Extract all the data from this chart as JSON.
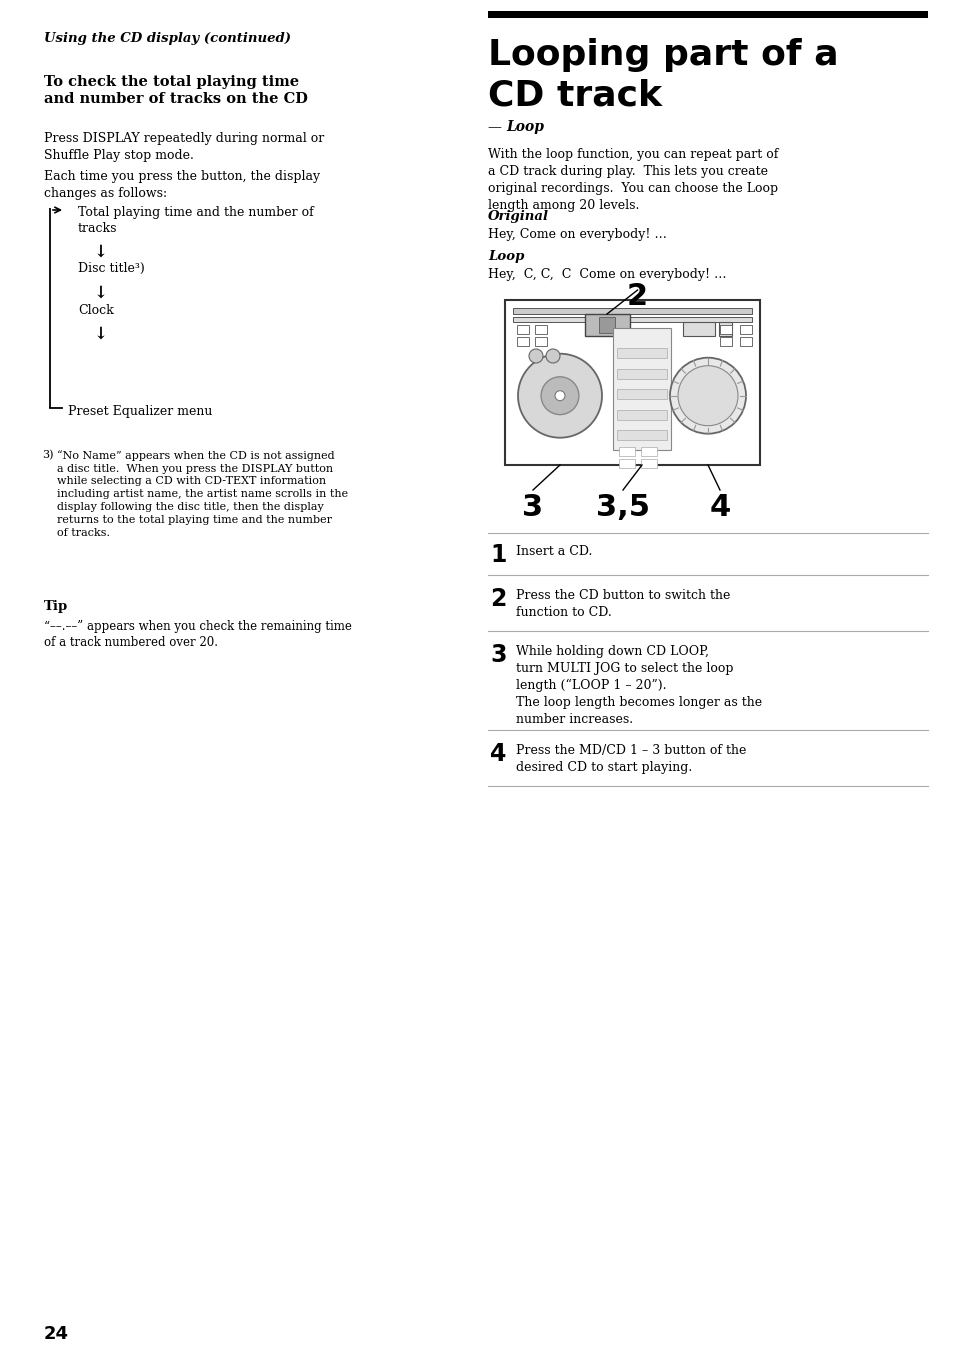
{
  "bg_color": "#ffffff",
  "page_number": "24",
  "left_col": {
    "header_italic_bold": "Using the CD display (continued)",
    "section_bold": "To check the total playing time\nand number of tracks on the CD",
    "body1": "Press DISPLAY repeatedly during normal or\nShuffle Play stop mode.",
    "body2": "Each time you press the button, the display\nchanges as follows:",
    "footnote": "“No Name” appears when the CD is not assigned\na disc title.  When you press the DISPLAY button\nwhile selecting a CD with CD-TEXT information\nincluding artist name, the artist name scrolls in the\ndisplay following the disc title, then the display\nreturns to the total playing time and the number\nof tracks.",
    "tip_label": "Tip",
    "tip_text": "“––.––” appears when you check the remaining time\nof a track numbered over 20."
  },
  "right_col": {
    "title_line1": "Looping part of a",
    "title_line2": "CD track",
    "subtitle": "— Loop",
    "body1": "With the loop function, you can repeat part of\na CD track during play.  This lets you create\noriginal recordings.  You can choose the Loop\nlength among 20 levels.",
    "original_label": "Original",
    "original_text": "Hey, Come on everybody! …",
    "loop_label": "Loop",
    "loop_text": "Hey,  C, C,  C  Come on everybody! …",
    "steps": [
      {
        "num": "1",
        "text": "Insert a CD."
      },
      {
        "num": "2",
        "text": "Press the CD button to switch the\nfunction to CD."
      },
      {
        "num": "3",
        "text": "While holding down CD LOOP,\nturn MULTI JOG to select the loop\nlength (“LOOP 1 – 20”).\nThe loop length becomes longer as the\nnumber increases."
      },
      {
        "num": "4",
        "text": "Press the MD/CD 1 – 3 button of the\ndesired CD to start playing."
      }
    ]
  }
}
